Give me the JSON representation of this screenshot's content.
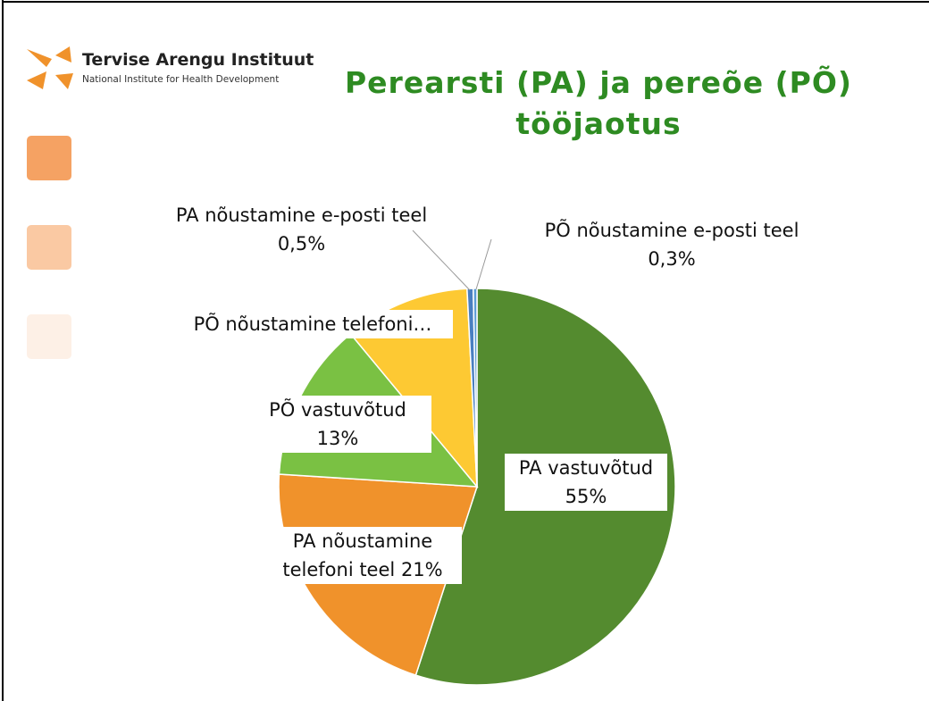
{
  "header": {
    "org": "Tervise Arengu Instituut",
    "org_en": "National Institute for Health Development"
  },
  "chart_data": {
    "type": "pie",
    "title": [
      "Perearsti (PA) ja pereõe (PÕ)",
      "tööjaotus"
    ],
    "categories": [
      "PA vastuvõtud",
      "PA nõustamine telefoni teel",
      "PÕ vastuvõtud",
      "PÕ nõustamine telefoni…",
      "PA nõustamine e-posti teel",
      "PÕ nõustamine e-posti teel"
    ],
    "values": [
      55,
      21,
      13,
      10.2,
      0.5,
      0.3
    ],
    "value_labels": [
      "55%",
      "21%",
      "13%",
      null,
      "0,5%",
      "0,3%"
    ],
    "colors": [
      "#548b2f",
      "#f0922b",
      "#7ac143",
      "#fdc933",
      "#4a7fc0",
      "#5b9bd5"
    ]
  }
}
